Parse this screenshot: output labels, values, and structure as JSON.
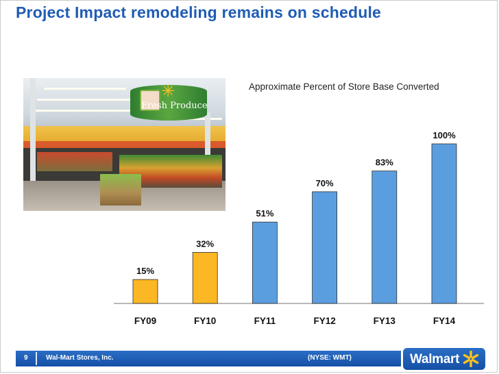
{
  "slide": {
    "title": "Project Impact remodeling remains on schedule"
  },
  "photo": {
    "sign_text": "Fresh Produce"
  },
  "chart_data": {
    "type": "bar",
    "title": "Approximate Percent of Store Base Converted",
    "categories": [
      "FY09",
      "FY10",
      "FY11",
      "FY12",
      "FY13",
      "FY14"
    ],
    "values": [
      15,
      32,
      51,
      70,
      83,
      100
    ],
    "data_labels": [
      "15%",
      "32%",
      "51%",
      "70%",
      "83%",
      "100%"
    ],
    "bar_colors": [
      "#fbb724",
      "#fbb724",
      "#5b9ee0",
      "#5b9ee0",
      "#5b9ee0",
      "#5b9ee0"
    ],
    "ylim": [
      0,
      100
    ],
    "grid": false,
    "legend": "none"
  },
  "footer": {
    "page_number": "9",
    "company": "Wal-Mart Stores, Inc.",
    "ticker": "(NYSE: WMT)",
    "logo_text": "Walmart"
  },
  "colors": {
    "title": "#1f5cb4",
    "footer": "#1b5cb3",
    "spark": "#fcc11e"
  }
}
